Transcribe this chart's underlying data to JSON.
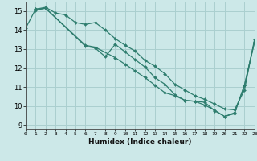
{
  "xlabel": "Humidex (Indice chaleur)",
  "bg_color": "#cce8e8",
  "grid_color": "#aacfcf",
  "line_color": "#2e7d6e",
  "xlim": [
    0,
    23
  ],
  "ylim": [
    8.8,
    15.5
  ],
  "yticks": [
    9,
    10,
    11,
    12,
    13,
    14,
    15
  ],
  "xticks": [
    0,
    1,
    2,
    3,
    4,
    5,
    6,
    7,
    8,
    9,
    10,
    11,
    12,
    13,
    14,
    15,
    16,
    17,
    18,
    19,
    20,
    21,
    22,
    23
  ],
  "line1_x": [
    0,
    1,
    2,
    3,
    4,
    5,
    6,
    7,
    8,
    9,
    10,
    11,
    12,
    13,
    14,
    15,
    16,
    17,
    18,
    19,
    20,
    21,
    22,
    23
  ],
  "line1_y": [
    14.1,
    15.1,
    15.2,
    14.9,
    14.8,
    14.4,
    14.3,
    14.4,
    14.0,
    13.55,
    13.2,
    12.9,
    12.4,
    12.1,
    11.7,
    11.15,
    10.85,
    10.55,
    10.35,
    10.1,
    9.85,
    9.8,
    10.85,
    13.5
  ],
  "line2_x": [
    1,
    2,
    6,
    7,
    9,
    10,
    11,
    12,
    13,
    14,
    15,
    16,
    17,
    18,
    19,
    20,
    21,
    22,
    23
  ],
  "line2_y": [
    15.1,
    15.15,
    13.2,
    13.1,
    12.55,
    12.2,
    11.85,
    11.5,
    11.1,
    10.7,
    10.55,
    10.3,
    10.25,
    10.05,
    9.78,
    9.45,
    9.65,
    11.1,
    13.4
  ],
  "line3_x": [
    1,
    2,
    6,
    7,
    8,
    9,
    10,
    11,
    12,
    13,
    14,
    15,
    16,
    17,
    18,
    19,
    20,
    21,
    22,
    23
  ],
  "line3_y": [
    15.05,
    15.15,
    13.15,
    13.05,
    12.6,
    13.25,
    12.85,
    12.45,
    12.05,
    11.5,
    11.15,
    10.6,
    10.3,
    10.25,
    10.2,
    9.75,
    9.45,
    9.6,
    11.1,
    13.35
  ]
}
